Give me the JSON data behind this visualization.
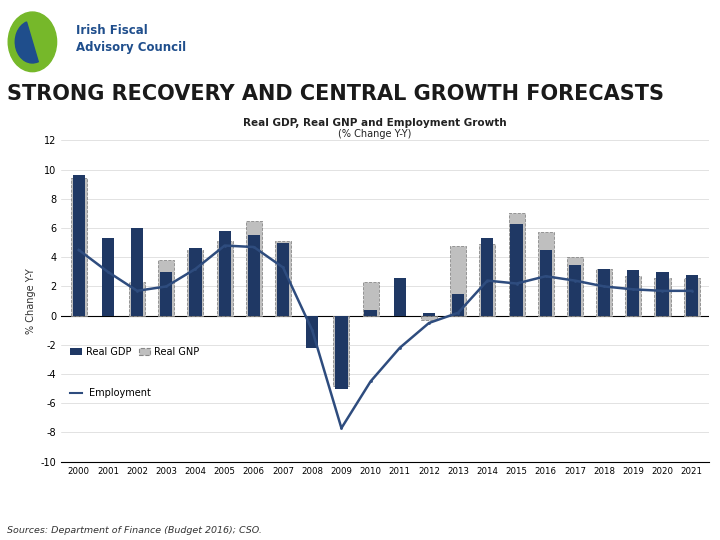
{
  "years": [
    2000,
    2001,
    2002,
    2003,
    2004,
    2005,
    2006,
    2007,
    2008,
    2009,
    2010,
    2011,
    2012,
    2013,
    2014,
    2015,
    2016,
    2017,
    2018,
    2019,
    2020,
    2021
  ],
  "real_gdp": [
    9.6,
    5.3,
    6.0,
    3.0,
    4.6,
    5.8,
    5.5,
    5.0,
    -2.2,
    -5.0,
    0.4,
    2.6,
    0.2,
    1.5,
    5.3,
    6.3,
    4.5,
    3.5,
    3.2,
    3.1,
    3.0,
    2.8
  ],
  "real_gnp": [
    9.4,
    0.0,
    2.3,
    3.8,
    4.5,
    5.1,
    6.5,
    5.1,
    0.0,
    -4.8,
    2.3,
    0.0,
    -0.3,
    4.8,
    4.9,
    7.0,
    5.7,
    4.0,
    3.2,
    2.7,
    2.6,
    2.6
  ],
  "employment": [
    4.5,
    3.0,
    1.7,
    2.0,
    3.2,
    4.8,
    4.7,
    3.3,
    -1.0,
    -7.7,
    -4.5,
    -2.2,
    -0.5,
    0.2,
    2.4,
    2.2,
    2.7,
    2.4,
    2.0,
    1.8,
    1.7,
    1.7
  ],
  "gdp_color": "#1F3864",
  "gnp_color": "#BFBFBF",
  "emp_color": "#2E4C7E",
  "ylim": [
    -10,
    12
  ],
  "yticks": [
    -10,
    -8,
    -6,
    -4,
    -2,
    0,
    2,
    4,
    6,
    8,
    10,
    12
  ],
  "title_line1": "Real GDP, Real GNP and Employment Growth",
  "title_line2": "(% Change Y-Y)",
  "ylabel": "% Change Y-Y",
  "main_title": "STRONG RECOVERY AND CENTRAL GROWTH FORECASTS",
  "source_text": "Sources: Department of Finance (Budget 2016); CSO.",
  "header_bar_color": "#4472C4",
  "bg_color": "#FFFFFF",
  "logo_green": "#76B82A",
  "logo_blue": "#1F4E8C"
}
